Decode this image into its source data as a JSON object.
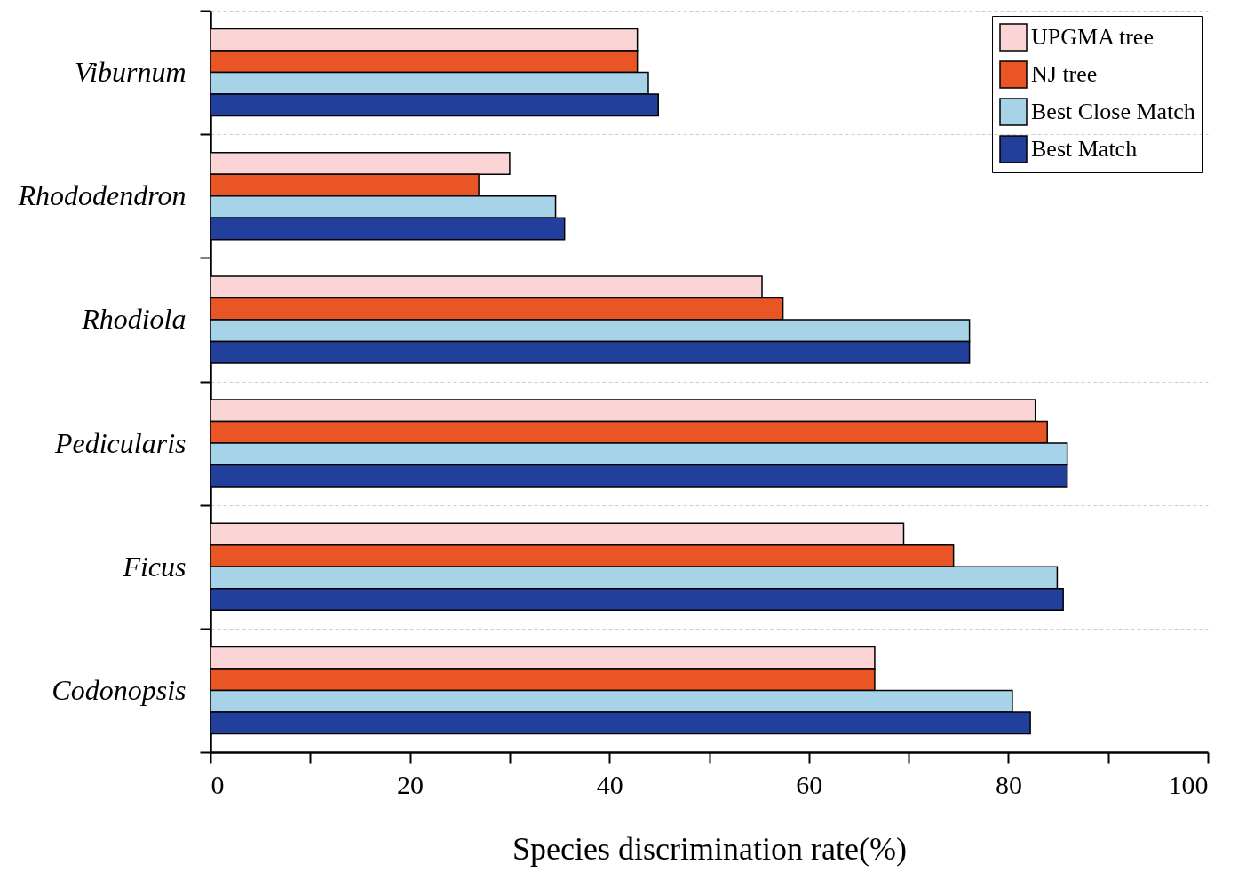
{
  "chart_data": {
    "type": "bar",
    "orientation": "horizontal",
    "xlabel": "Species discrimination rate(%)",
    "categories": [
      "Viburnum",
      "Rhododendron",
      "Rhodiola",
      "Pedicularis",
      "Ficus",
      "Codonopsis"
    ],
    "series": [
      {
        "name": "UPGMA tree",
        "color": "#fbd5d5",
        "values": [
          42.8,
          30.0,
          55.3,
          82.7,
          69.5,
          66.6
        ]
      },
      {
        "name": "NJ tree",
        "color": "#e95524",
        "values": [
          42.8,
          26.9,
          57.4,
          83.9,
          74.5,
          66.6
        ]
      },
      {
        "name": "Best Close Match",
        "color": "#a6d3e8",
        "values": [
          43.9,
          34.6,
          76.1,
          85.9,
          84.9,
          80.4
        ]
      },
      {
        "name": "Best Match",
        "color": "#233f9c",
        "values": [
          44.9,
          35.5,
          76.1,
          85.9,
          85.5,
          82.2
        ]
      }
    ],
    "xlim": [
      0,
      100
    ],
    "xticks": [
      0,
      {
        "value": 10,
        "label": null
      },
      20,
      {
        "value": 30,
        "label": null
      },
      40,
      {
        "value": 50,
        "label": null
      },
      60,
      {
        "value": 70,
        "label": null
      },
      80,
      {
        "value": 90,
        "label": null
      },
      100
    ],
    "grid": "y",
    "legend": "top right"
  }
}
